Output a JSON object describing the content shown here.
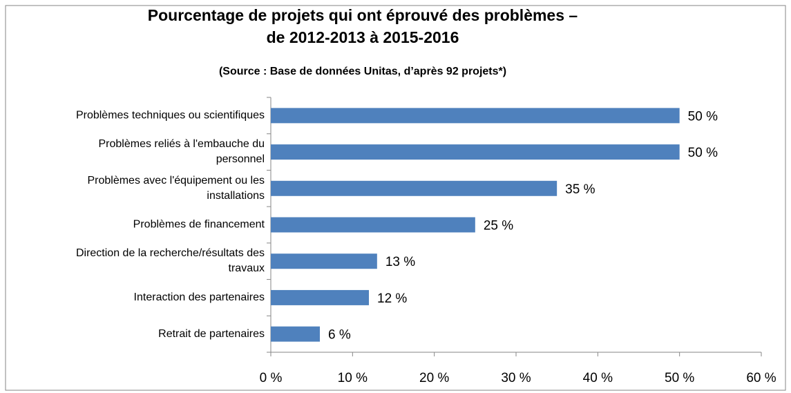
{
  "chart_data": {
    "type": "barh",
    "title": "Pourcentage de projets qui ont éprouvé des problèmes –\nde 2012-2013 à 2015-2016",
    "subtitle": "(Source : Base de données Unitas, d’après 92 projets*)",
    "categories": [
      "Problèmes techniques ou scientifiques",
      "Problèmes reliés à l'embauche du\npersonnel",
      "Problèmes avec l'équipement ou les\ninstallations",
      "Problèmes de financement",
      "Direction de la recherche/résultats des\ntravaux",
      "Interaction des partenaires",
      "Retrait de partenaires"
    ],
    "values": [
      50,
      50,
      35,
      25,
      13,
      12,
      6
    ],
    "value_labels": [
      "50 %",
      "50 %",
      "35 %",
      "25 %",
      "13 %",
      "12 %",
      "6 %"
    ],
    "color": "#4f81bd",
    "xlim": [
      0,
      60
    ],
    "xticks": [
      {
        "value": 0,
        "label": "0 %"
      },
      {
        "value": 10,
        "label": "10 %"
      },
      {
        "value": 20,
        "label": "20 %"
      },
      {
        "value": 30,
        "label": "30 %"
      },
      {
        "value": 40,
        "label": "40 %"
      },
      {
        "value": 50,
        "label": "50 %"
      },
      {
        "value": 60,
        "label": "60 %"
      }
    ],
    "grid": false
  }
}
